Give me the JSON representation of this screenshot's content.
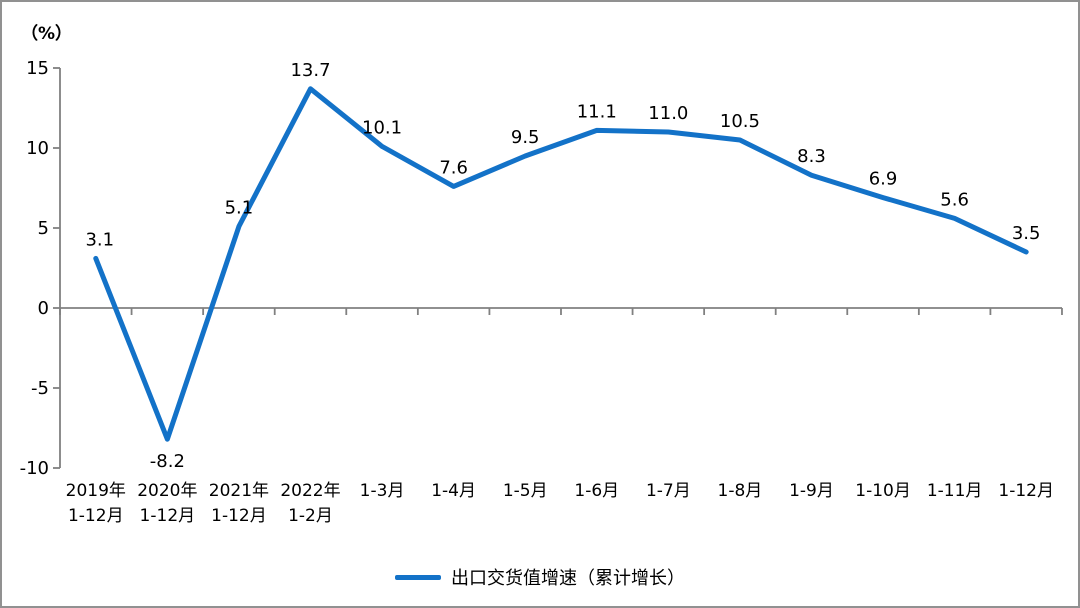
{
  "chart_data": {
    "type": "line",
    "title": "",
    "grid": false,
    "legend_position": "bottom-center",
    "y_axis": {
      "unit": "（%）",
      "min": -10,
      "max": 15,
      "step": 5,
      "ticks": [
        15,
        10,
        5,
        0,
        -5,
        -10
      ]
    },
    "categories": [
      [
        "2019年",
        "1-12月"
      ],
      [
        "2020年",
        "1-12月"
      ],
      [
        "2021年",
        "1-12月"
      ],
      [
        "2022年",
        "1-2月"
      ],
      "1-3月",
      "1-4月",
      "1-5月",
      "1-6月",
      "1-7月",
      "1-8月",
      "1-9月",
      "1-10月",
      "1-11月",
      "1-12月"
    ],
    "series": [
      {
        "name": "出口交货值增速（累计增长）",
        "color": "#1372C8",
        "values": [
          3.1,
          -8.2,
          5.1,
          13.7,
          10.1,
          7.6,
          9.5,
          11.1,
          11.0,
          10.5,
          8.3,
          6.9,
          5.6,
          3.5
        ],
        "labels": [
          "3.1",
          "-8.2",
          "5.1",
          "13.7",
          "10.1",
          "7.6",
          "9.5",
          "11.1",
          "11.0",
          "10.5",
          "8.3",
          "6.9",
          "5.6",
          "3.5"
        ]
      }
    ],
    "colors": {
      "axis": "#808080",
      "text": "#000000",
      "background": "#ffffff",
      "frame_border": "#919191"
    }
  }
}
